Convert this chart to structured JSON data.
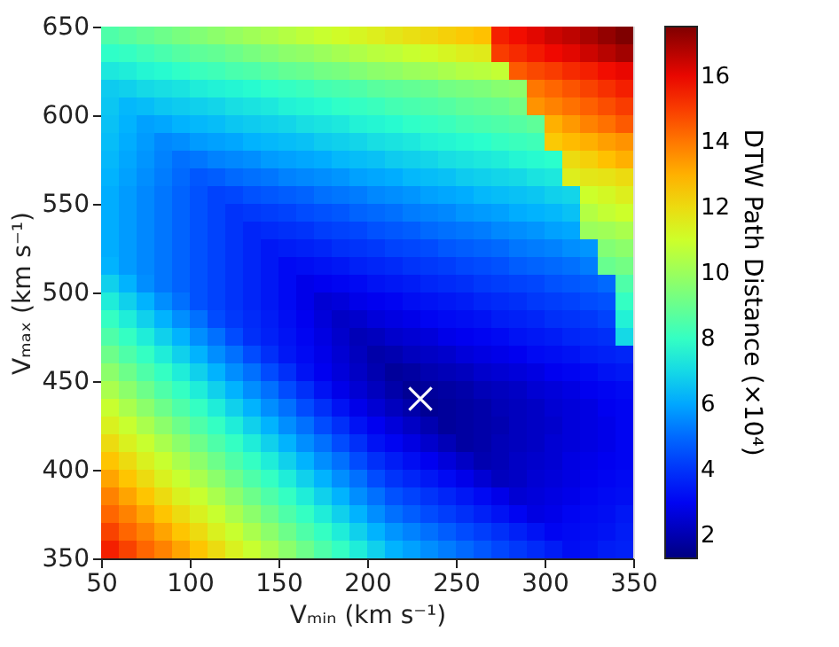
{
  "chart_data": {
    "type": "heatmap",
    "xlabel": "Vₘᵢₙ (km s⁻¹)",
    "ylabel": "Vₘₐₓ (km s⁻¹)",
    "clabel": "DTW Path Distance (×10⁴)",
    "x": [
      55,
      65,
      75,
      85,
      95,
      105,
      115,
      125,
      135,
      145,
      155,
      165,
      175,
      185,
      195,
      205,
      215,
      225,
      235,
      245,
      255,
      265,
      275,
      285,
      295,
      305,
      315,
      325,
      335,
      345
    ],
    "y": [
      645,
      635,
      625,
      615,
      605,
      595,
      585,
      575,
      565,
      555,
      545,
      535,
      525,
      515,
      505,
      495,
      485,
      475,
      465,
      455,
      445,
      435,
      425,
      415,
      405,
      395,
      385,
      375,
      365,
      355
    ],
    "xlim": [
      50,
      350
    ],
    "ylim": [
      350,
      650
    ],
    "xticks": [
      50,
      100,
      150,
      200,
      250,
      300,
      350
    ],
    "yticks": [
      350,
      400,
      450,
      500,
      550,
      600,
      650
    ],
    "clim": [
      1.3,
      17.5
    ],
    "cticks": [
      2,
      4,
      6,
      8,
      10,
      12,
      14,
      16
    ],
    "cells": [
      [
        8.5,
        8.7,
        8.9,
        9.1,
        9.3,
        9.5,
        9.7,
        9.9,
        10.1,
        10.3,
        10.5,
        10.7,
        10.9,
        11.1,
        11.3,
        11.5,
        11.7,
        11.9,
        12.1,
        12.3,
        12.5,
        12.7,
        15.5,
        15.8,
        16.1,
        16.4,
        16.6,
        16.9,
        17.2,
        17.5
      ],
      [
        7.9,
        8.0,
        8.2,
        8.4,
        8.6,
        8.8,
        8.9,
        9.1,
        9.3,
        9.5,
        9.7,
        9.8,
        10.0,
        10.2,
        10.4,
        10.6,
        10.7,
        10.9,
        11.1,
        11.3,
        11.5,
        11.6,
        15.0,
        15.3,
        15.6,
        15.9,
        16.1,
        16.4,
        16.7,
        17.0
      ],
      [
        7.3,
        7.4,
        7.6,
        7.7,
        7.9,
        8.1,
        8.2,
        8.4,
        8.5,
        8.7,
        8.9,
        9.0,
        9.2,
        9.3,
        9.5,
        9.7,
        9.8,
        10.0,
        10.1,
        10.3,
        10.5,
        10.6,
        10.8,
        14.5,
        14.8,
        15.0,
        15.3,
        15.5,
        15.8,
        16.0
      ],
      [
        6.7,
        6.8,
        7.0,
        7.1,
        7.2,
        7.4,
        7.5,
        7.6,
        7.7,
        7.9,
        8.0,
        8.1,
        8.3,
        8.4,
        8.5,
        8.7,
        8.8,
        8.9,
        9.0,
        9.2,
        9.3,
        9.4,
        9.6,
        9.7,
        14.0,
        14.3,
        14.6,
        14.9,
        15.2,
        15.5
      ],
      [
        6.6,
        6.3,
        6.4,
        6.6,
        6.7,
        6.8,
        6.9,
        7.1,
        7.2,
        7.3,
        7.5,
        7.6,
        7.7,
        7.9,
        8.0,
        8.1,
        8.3,
        8.4,
        8.5,
        8.6,
        8.8,
        8.9,
        9.0,
        9.2,
        13.5,
        13.8,
        14.1,
        14.4,
        14.7,
        15.0
      ],
      [
        6.5,
        6.2,
        5.9,
        6.0,
        6.2,
        6.3,
        6.4,
        6.6,
        6.7,
        6.8,
        6.9,
        7.1,
        7.2,
        7.3,
        7.5,
        7.6,
        7.7,
        7.9,
        8.0,
        8.1,
        8.3,
        8.4,
        8.5,
        8.6,
        8.8,
        13.0,
        13.4,
        13.8,
        14.1,
        14.5
      ],
      [
        6.4,
        6.1,
        5.8,
        5.5,
        5.6,
        5.8,
        5.9,
        6.0,
        6.2,
        6.3,
        6.4,
        6.5,
        6.7,
        6.8,
        6.9,
        7.1,
        7.2,
        7.3,
        7.5,
        7.6,
        7.7,
        7.8,
        8.0,
        8.1,
        8.2,
        12.5,
        12.8,
        13.0,
        13.3,
        13.5
      ],
      [
        6.3,
        6.0,
        5.7,
        5.4,
        5.1,
        5.2,
        5.4,
        5.5,
        5.6,
        5.8,
        5.9,
        6.0,
        6.1,
        6.3,
        6.4,
        6.5,
        6.7,
        6.8,
        6.9,
        7.1,
        7.2,
        7.3,
        7.4,
        7.6,
        7.7,
        7.8,
        12.0,
        12.3,
        12.7,
        13.0
      ],
      [
        6.2,
        5.9,
        5.6,
        5.3,
        5.0,
        4.7,
        4.8,
        5.0,
        5.1,
        5.2,
        5.4,
        5.5,
        5.6,
        5.7,
        5.9,
        6.0,
        6.1,
        6.3,
        6.4,
        6.5,
        6.7,
        6.8,
        6.9,
        7.0,
        7.2,
        7.3,
        11.5,
        11.7,
        11.8,
        12.0
      ],
      [
        6.1,
        5.8,
        5.5,
        5.2,
        4.9,
        4.6,
        4.3,
        4.4,
        4.6,
        4.7,
        4.8,
        4.9,
        5.1,
        5.2,
        5.3,
        5.5,
        5.6,
        5.7,
        5.9,
        6.0,
        6.1,
        6.3,
        6.4,
        6.5,
        6.6,
        6.8,
        6.9,
        11.0,
        11.2,
        11.5
      ],
      [
        6.1,
        5.8,
        5.5,
        5.2,
        4.9,
        4.6,
        4.3,
        4.0,
        4.1,
        4.2,
        4.3,
        4.5,
        4.6,
        4.7,
        4.9,
        5.0,
        5.1,
        5.3,
        5.4,
        5.5,
        5.7,
        5.8,
        5.9,
        6.1,
        6.2,
        6.3,
        6.5,
        10.5,
        10.8,
        11.0
      ],
      [
        6.1,
        5.8,
        5.5,
        5.2,
        4.9,
        4.6,
        4.3,
        4.0,
        3.7,
        3.8,
        3.9,
        4.0,
        4.2,
        4.3,
        4.4,
        4.6,
        4.7,
        4.8,
        5.0,
        5.1,
        5.2,
        5.3,
        5.5,
        5.6,
        5.7,
        5.9,
        6.0,
        10.0,
        10.1,
        10.3
      ],
      [
        6.1,
        5.8,
        5.5,
        5.2,
        4.9,
        4.6,
        4.3,
        4.0,
        3.7,
        3.4,
        3.5,
        3.6,
        3.7,
        3.9,
        4.0,
        4.1,
        4.3,
        4.4,
        4.5,
        4.7,
        4.8,
        4.9,
        5.0,
        5.2,
        5.3,
        5.4,
        5.6,
        5.7,
        9.5,
        9.7
      ],
      [
        6.2,
        5.8,
        5.5,
        5.2,
        4.9,
        4.6,
        4.3,
        4.0,
        3.7,
        3.4,
        3.1,
        3.2,
        3.3,
        3.4,
        3.6,
        3.7,
        3.8,
        4.0,
        4.1,
        4.2,
        4.4,
        4.5,
        4.6,
        4.8,
        4.9,
        5.0,
        5.1,
        5.3,
        9.0,
        9.2
      ],
      [
        6.8,
        6.2,
        5.6,
        5.2,
        4.9,
        4.6,
        4.3,
        4.0,
        3.7,
        3.4,
        3.1,
        2.8,
        2.9,
        3.0,
        3.1,
        3.3,
        3.4,
        3.5,
        3.7,
        3.8,
        3.9,
        4.1,
        4.2,
        4.3,
        4.4,
        4.6,
        4.7,
        4.8,
        5.0,
        8.5
      ],
      [
        7.4,
        6.8,
        6.2,
        5.6,
        5.1,
        4.6,
        4.3,
        4.0,
        3.7,
        3.4,
        3.1,
        2.8,
        2.5,
        2.6,
        2.8,
        2.9,
        3.0,
        3.2,
        3.3,
        3.4,
        3.5,
        3.7,
        3.8,
        3.9,
        4.1,
        4.2,
        4.3,
        4.5,
        4.6,
        8.0
      ],
      [
        8.0,
        7.4,
        6.8,
        6.2,
        5.6,
        5.1,
        4.5,
        4.1,
        3.8,
        3.5,
        3.2,
        2.9,
        2.6,
        2.3,
        2.4,
        2.6,
        2.7,
        2.8,
        3.0,
        3.1,
        3.2,
        3.3,
        3.5,
        3.6,
        3.7,
        3.9,
        4.0,
        4.1,
        4.3,
        7.5
      ],
      [
        8.5,
        8.0,
        7.4,
        6.8,
        6.2,
        5.6,
        5.1,
        4.5,
        3.9,
        3.6,
        3.3,
        3.0,
        2.7,
        2.4,
        2.1,
        2.2,
        2.4,
        2.5,
        2.6,
        2.8,
        2.9,
        3.0,
        3.1,
        3.3,
        3.4,
        3.5,
        3.7,
        3.8,
        3.9,
        7.0
      ],
      [
        9.1,
        8.5,
        8.0,
        7.4,
        6.8,
        6.2,
        5.6,
        5.1,
        4.5,
        3.9,
        3.4,
        3.1,
        2.8,
        2.5,
        2.2,
        1.9,
        2.0,
        2.2,
        2.3,
        2.4,
        2.6,
        2.7,
        2.8,
        2.9,
        3.1,
        3.2,
        3.3,
        3.5,
        3.6,
        3.7
      ],
      [
        9.7,
        9.1,
        8.5,
        8.0,
        7.4,
        6.8,
        6.2,
        5.6,
        5.1,
        4.5,
        3.9,
        3.3,
        2.9,
        2.6,
        2.3,
        2.0,
        1.7,
        1.8,
        2.0,
        2.1,
        2.2,
        2.4,
        2.5,
        2.6,
        2.7,
        2.9,
        3.0,
        3.1,
        3.3,
        3.4
      ],
      [
        10.3,
        9.7,
        9.1,
        8.5,
        8.0,
        7.4,
        6.8,
        6.2,
        5.6,
        5.1,
        4.5,
        3.9,
        3.3,
        2.8,
        2.5,
        2.2,
        1.9,
        1.6,
        1.7,
        1.8,
        1.9,
        2.1,
        2.2,
        2.3,
        2.5,
        2.6,
        2.7,
        2.9,
        3.0,
        3.1
      ],
      [
        10.9,
        10.3,
        9.7,
        9.1,
        8.5,
        8.0,
        7.4,
        6.8,
        6.2,
        5.6,
        5.1,
        4.5,
        3.9,
        3.3,
        2.8,
        2.5,
        2.2,
        1.9,
        1.6,
        1.7,
        1.8,
        1.9,
        2.1,
        2.2,
        2.3,
        2.5,
        2.6,
        2.7,
        2.9,
        3.0
      ],
      [
        11.4,
        10.9,
        10.3,
        9.7,
        9.1,
        8.5,
        8.0,
        7.4,
        6.8,
        6.2,
        5.6,
        5.1,
        4.5,
        3.9,
        3.3,
        2.9,
        2.6,
        2.3,
        2.0,
        1.7,
        1.8,
        1.9,
        2.0,
        2.2,
        2.3,
        2.4,
        2.6,
        2.7,
        2.8,
        3.0
      ],
      [
        12.0,
        11.4,
        10.9,
        10.3,
        9.7,
        9.1,
        8.5,
        8.0,
        7.4,
        6.8,
        6.2,
        5.6,
        5.1,
        4.5,
        3.9,
        3.3,
        3.0,
        2.7,
        2.4,
        2.1,
        1.8,
        1.9,
        2.1,
        2.2,
        2.3,
        2.5,
        2.6,
        2.7,
        2.8,
        3.0
      ],
      [
        12.6,
        12.0,
        11.4,
        10.9,
        10.3,
        9.7,
        9.1,
        8.5,
        8.0,
        7.4,
        6.8,
        6.2,
        5.6,
        5.1,
        4.5,
        3.9,
        3.5,
        3.2,
        2.9,
        2.6,
        2.3,
        2.0,
        2.1,
        2.3,
        2.4,
        2.5,
        2.7,
        2.8,
        2.9,
        3.0
      ],
      [
        13.2,
        12.6,
        12.0,
        11.4,
        10.9,
        10.3,
        9.7,
        9.1,
        8.5,
        8.0,
        7.4,
        6.8,
        6.2,
        5.6,
        5.1,
        4.5,
        4.0,
        3.7,
        3.4,
        3.1,
        2.8,
        2.5,
        2.2,
        2.3,
        2.5,
        2.6,
        2.7,
        2.9,
        3.0,
        3.1
      ],
      [
        13.8,
        13.2,
        12.6,
        12.0,
        11.4,
        10.9,
        10.3,
        9.7,
        9.1,
        8.5,
        8.0,
        7.4,
        6.8,
        6.2,
        5.6,
        5.1,
        4.6,
        4.3,
        4.0,
        3.7,
        3.4,
        3.1,
        2.8,
        2.5,
        2.6,
        2.7,
        2.8,
        3.0,
        3.1,
        3.2
      ],
      [
        14.3,
        13.8,
        13.2,
        12.6,
        12.0,
        11.4,
        10.9,
        10.3,
        9.7,
        9.1,
        8.5,
        8.0,
        7.4,
        6.8,
        6.2,
        5.6,
        5.1,
        4.8,
        4.5,
        4.2,
        3.9,
        3.6,
        3.3,
        3.0,
        2.7,
        2.8,
        3.0,
        3.1,
        3.2,
        3.4
      ],
      [
        14.9,
        14.3,
        13.8,
        13.2,
        12.6,
        12.0,
        11.4,
        10.9,
        10.3,
        9.7,
        9.1,
        8.5,
        8.0,
        7.4,
        6.8,
        6.2,
        5.7,
        5.4,
        5.1,
        4.8,
        4.5,
        4.2,
        3.9,
        3.6,
        3.3,
        3.0,
        3.1,
        3.2,
        3.3,
        3.5
      ],
      [
        15.5,
        14.9,
        14.3,
        13.8,
        13.2,
        12.6,
        12.0,
        11.4,
        10.9,
        10.3,
        9.7,
        9.1,
        8.5,
        8.0,
        7.4,
        6.8,
        6.2,
        5.9,
        5.6,
        5.3,
        5.0,
        4.7,
        4.4,
        4.1,
        3.8,
        3.5,
        3.2,
        3.3,
        3.5,
        3.6
      ]
    ],
    "series": [
      {
        "type": "scatter",
        "x": [
          230
        ],
        "values": [
          440
        ],
        "color": "#ffffff",
        "marker": "cross"
      }
    ]
  }
}
